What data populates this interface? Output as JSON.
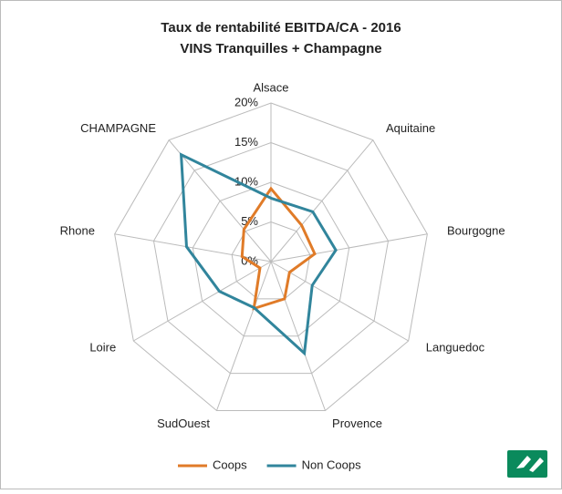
{
  "chart_data": {
    "type": "radar",
    "title": [
      "Taux de rentabilité EBITDA/CA - 2016",
      "VINS Tranquilles + Champagne"
    ],
    "categories": [
      "Alsace",
      "Aquitaine",
      "Bourgogne",
      "Languedoc",
      "Provence",
      "SudOuest",
      "Loire",
      "Rhone",
      "CHAMPAGNE"
    ],
    "series": [
      {
        "name": "Coops",
        "color": "#e07b28",
        "values": [
          9.2,
          6,
          5.6,
          2.7,
          5,
          6.3,
          1.6,
          3.7,
          5.3
        ]
      },
      {
        "name": "Non Coops",
        "color": "#31859c",
        "values": [
          8,
          8.2,
          8.3,
          6,
          12.3,
          6.2,
          7.5,
          10.8,
          17.6
        ]
      }
    ],
    "ylim": [
      0,
      20
    ],
    "yticks": [
      {
        "value": 0,
        "label": "0%"
      },
      {
        "value": 5,
        "label": "5%"
      },
      {
        "value": 10,
        "label": "10%"
      },
      {
        "value": 15,
        "label": "15%"
      },
      {
        "value": 20,
        "label": "20%"
      }
    ],
    "grid": true,
    "legend": "bottom"
  }
}
